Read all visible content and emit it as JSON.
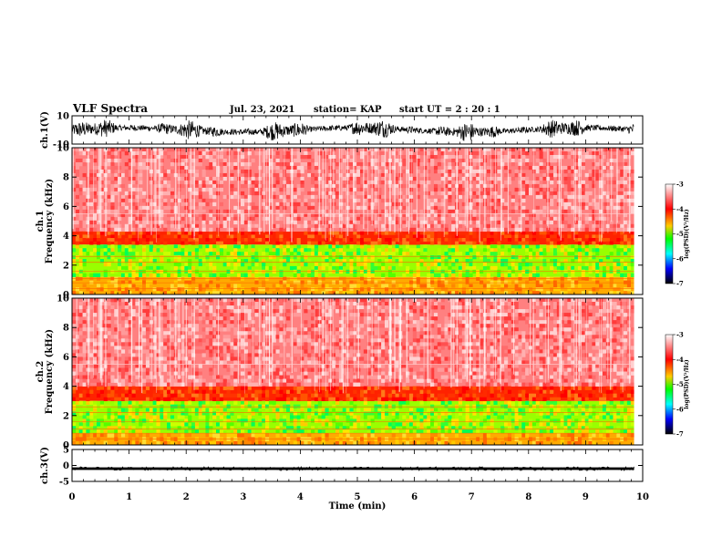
{
  "header": {
    "title": "VLF Spectra",
    "date": "Jul. 23, 2021",
    "station": "station= KAP",
    "start_time": "start UT =  2 : 20 : 1"
  },
  "chart_data": [
    {
      "type": "line",
      "panel": "ch1-waveform",
      "ylabel": "ch.1(V)",
      "ylim": [
        -10,
        10
      ],
      "y_ticks": [
        "10",
        "-10"
      ],
      "x_range_min": [
        0,
        9.85
      ],
      "description_values": "dense noisy waveform roughly between -7 and +7 V",
      "color": "#000000"
    },
    {
      "type": "heatmap",
      "panel": "ch1-spectrogram",
      "ylabel": "ch.1\nFrequency (kHz)",
      "ylabel_lines": [
        "ch.1",
        "Frequency (kHz)"
      ],
      "ylim": [
        0,
        10
      ],
      "y_ticks": [
        "0",
        "2",
        "4",
        "6",
        "8",
        "10"
      ],
      "x_range_min": [
        0,
        9.85
      ],
      "band_profile_kHz": [
        {
          "from": 0,
          "to": 1.2,
          "level": "yellow-orange"
        },
        {
          "from": 1.2,
          "to": 3.4,
          "level": "green-yellow"
        },
        {
          "from": 3.4,
          "to": 4.3,
          "level": "orange-red"
        },
        {
          "from": 4.3,
          "to": 10,
          "level": "pink-red"
        }
      ],
      "colorbar": {
        "label": "log(PSD)(V²/Hz)",
        "range": [
          -7,
          -3
        ],
        "ticks": [
          "-3",
          "-4",
          "-5",
          "-6",
          "-7"
        ],
        "colors": [
          "#ffffff",
          "#ff0000",
          "#ffff00",
          "#00ff00",
          "#00ffff",
          "#0000ff",
          "#000000"
        ]
      }
    },
    {
      "type": "heatmap",
      "panel": "ch2-spectrogram",
      "ylabel": "ch.2\nFrequency (kHz)",
      "ylabel_lines": [
        "ch.2",
        "Frequency (kHz)"
      ],
      "ylim": [
        0,
        10
      ],
      "y_ticks": [
        "0",
        "2",
        "4",
        "6",
        "8",
        "10"
      ],
      "x_range_min": [
        0,
        9.85
      ],
      "band_profile_kHz": [
        {
          "from": 0,
          "to": 0.8,
          "level": "yellow-orange"
        },
        {
          "from": 0.8,
          "to": 3.0,
          "level": "green-yellow"
        },
        {
          "from": 3.0,
          "to": 4.0,
          "level": "orange-red"
        },
        {
          "from": 4.0,
          "to": 10,
          "level": "pink-red"
        }
      ],
      "colorbar": {
        "label": "log(PSD)(V²/Hz)",
        "range": [
          -7,
          -3
        ],
        "ticks": [
          "-3",
          "-4",
          "-5",
          "-6",
          "-7"
        ],
        "colors": [
          "#ffffff",
          "#ff0000",
          "#ffff00",
          "#00ff00",
          "#00ffff",
          "#0000ff",
          "#000000"
        ]
      }
    },
    {
      "type": "line",
      "panel": "ch3-waveform",
      "ylabel": "ch.3(V)",
      "ylim": [
        -5,
        5
      ],
      "y_ticks": [
        "5",
        "0",
        "-5"
      ],
      "x_range_min": [
        0,
        9.85
      ],
      "description_values": "thin dense band near -1 V",
      "color": "#000000"
    }
  ],
  "x_axis": {
    "label": "Time (min)",
    "ticks": [
      "0",
      "1",
      "2",
      "3",
      "4",
      "5",
      "6",
      "7",
      "8",
      "9",
      "10"
    ],
    "range": [
      0,
      10
    ]
  }
}
